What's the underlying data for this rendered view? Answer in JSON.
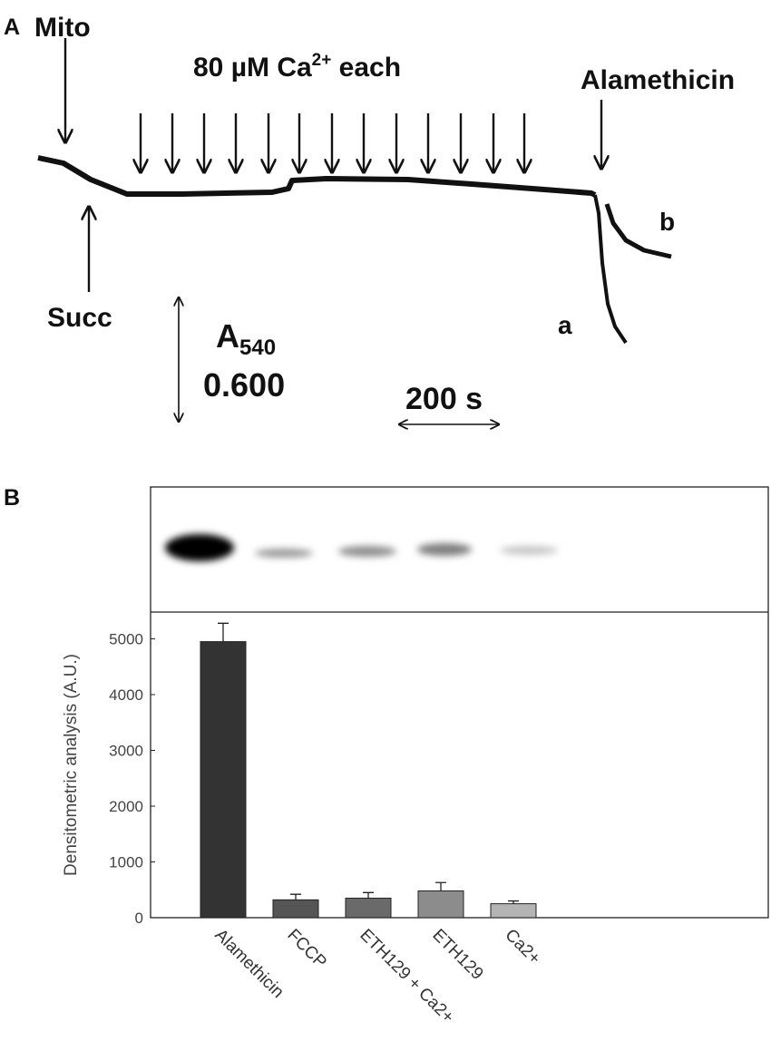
{
  "panel_a": {
    "label": "A",
    "mito": "Mito",
    "calcium_main": "80 µM Ca",
    "calcium_sup": "2+",
    "calcium_rest": " each",
    "alamethicin": "Alamethicin",
    "succ": "Succ",
    "trace_b": "b",
    "trace_a": "a",
    "absorbance": "A",
    "absorbance_sub": "540",
    "absorbance_scale": "0.600",
    "time_scale": "200 s"
  },
  "panel_b": {
    "label": "B"
  },
  "chart_data": {
    "type": "bar",
    "y_label": "Densitometric analysis (A.U.)",
    "categories": [
      "Alamethicin",
      "FCCP",
      "ETH129 + Ca2+",
      "ETH129",
      "Ca2+"
    ],
    "values": [
      4950,
      320,
      350,
      480,
      250
    ],
    "errors": [
      330,
      100,
      100,
      150,
      50
    ],
    "colors": [
      "#333333",
      "#555555",
      "#6a6a6a",
      "#8c8c8c",
      "#b4b4b4"
    ],
    "ylim": [
      0,
      5480
    ],
    "yticks": [
      0,
      1000,
      2000,
      3000,
      4000,
      5000
    ]
  }
}
